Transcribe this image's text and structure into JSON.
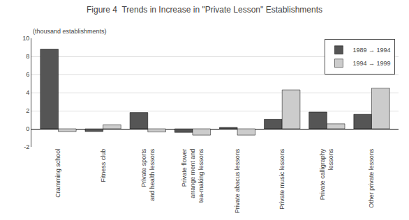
{
  "chart_data": {
    "type": "bar",
    "title": "Figure 4  Trends in Increase in \"Private Lesson\" Establishments",
    "ylabel": "(thousand establishments)",
    "categories": [
      "Cramming school",
      "Fitness club",
      "Private sports\nand health lessons",
      "Private flower\narrange ment and\ntea-making lessons",
      "Private abacus lessons",
      "Private music lessons",
      "Private calligraphy\nlessons",
      "Other private lessons"
    ],
    "series": [
      {
        "name": "1989 → 1994",
        "color": "#555555",
        "values": [
          8.8,
          -0.3,
          1.8,
          -0.4,
          0.15,
          1.05,
          1.85,
          1.6
        ]
      },
      {
        "name": "1994 → 1999",
        "color": "#cccccc",
        "values": [
          -0.3,
          0.45,
          -0.35,
          -0.7,
          -0.7,
          4.3,
          0.55,
          4.5
        ]
      }
    ],
    "ylim": [
      -2,
      10
    ],
    "yticks": [
      -2,
      0,
      2,
      4,
      6,
      8,
      10
    ],
    "grid": true,
    "legend": "upper right"
  }
}
